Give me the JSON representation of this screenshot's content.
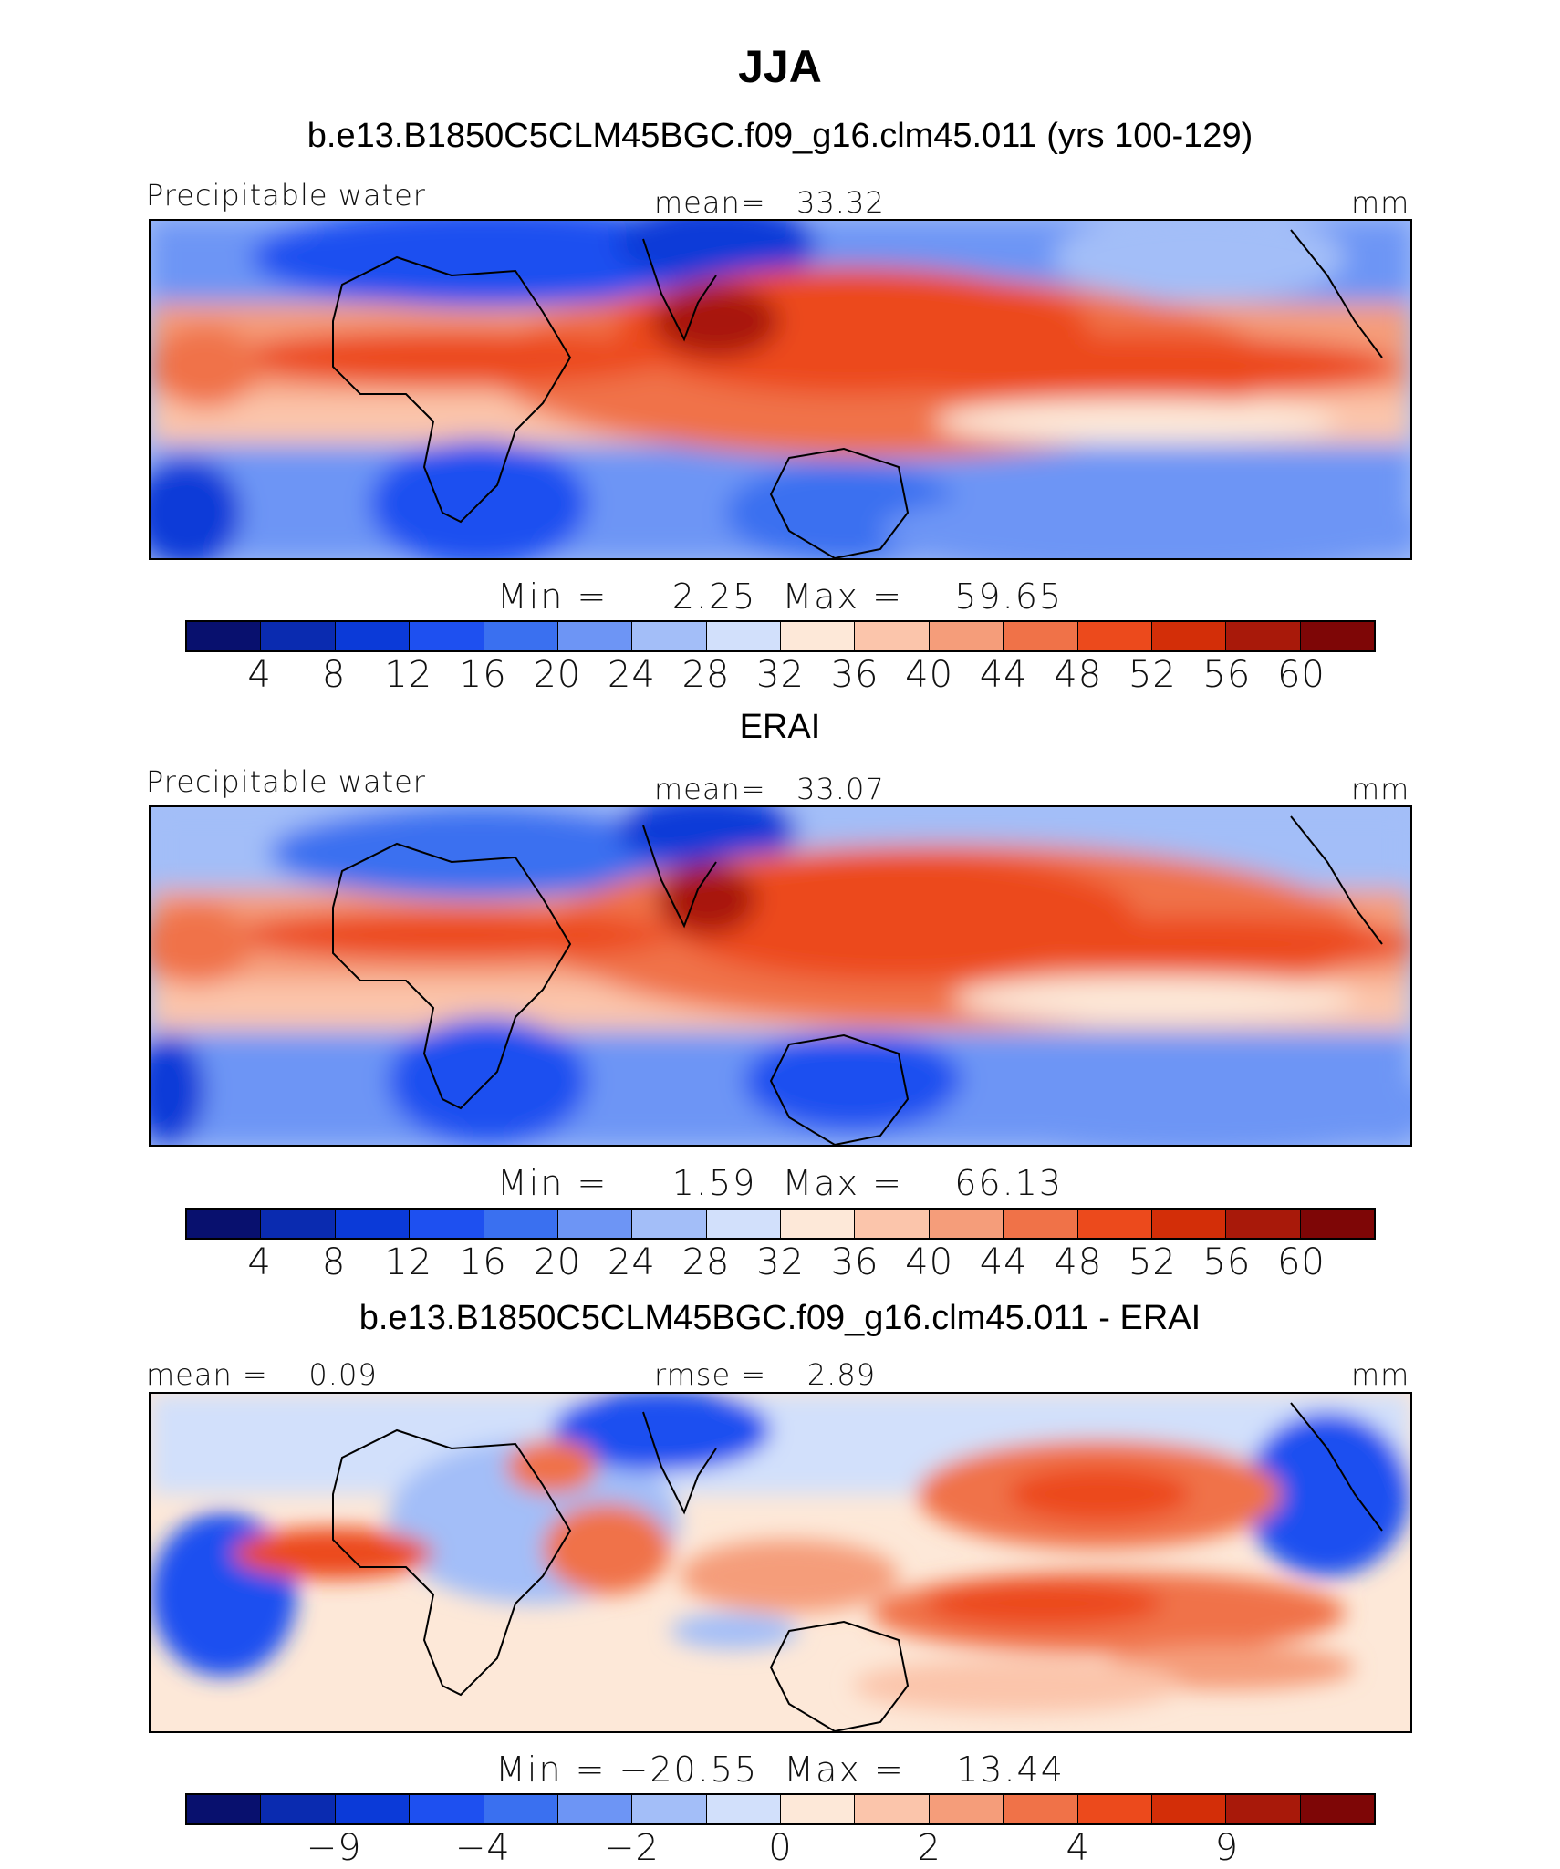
{
  "figure": {
    "title": "JJA"
  },
  "panels": [
    {
      "subtitle": "b.e13.B1850C5CLM45BGC.f09_g16.clm45.011 (yrs 100-129)",
      "left_label": "Precipitable water",
      "center_label": "mean=   33.32",
      "right_label": "mm",
      "stats": "Min =     2.25  Max =    59.65"
    },
    {
      "subtitle": "ERAI",
      "left_label": "Precipitable water",
      "center_label": "mean=   33.07",
      "right_label": "mm",
      "stats": "Min =     1.59  Max =    66.13"
    },
    {
      "subtitle": "b.e13.B1850C5CLM45BGC.f09_g16.clm45.011 - ERAI",
      "left_label": "mean =    0.09",
      "center_label": "rmse =    2.89",
      "right_label": "mm",
      "stats": "Min = −20.55  Max =    13.44"
    }
  ],
  "colorbars": {
    "abs_levels": [
      "4",
      "8",
      "12",
      "16",
      "20",
      "24",
      "28",
      "32",
      "36",
      "40",
      "44",
      "48",
      "52",
      "56",
      "60"
    ],
    "diff_levels": [
      "−9",
      "−4",
      "−2",
      "0",
      "2",
      "4",
      "9"
    ],
    "colors": [
      "#08106e",
      "#0a2bb0",
      "#0b3ad8",
      "#1e50f0",
      "#3a70f0",
      "#6d95f5",
      "#a3bef8",
      "#d2e0fb",
      "#fde8d8",
      "#fbc5ab",
      "#f59d7a",
      "#f07248",
      "#ec4a1c",
      "#d32e08",
      "#a8190a",
      "#7e0606"
    ]
  },
  "chart_data": [
    {
      "type": "heatmap",
      "title": "b.e13.B1850C5CLM45BGC.f09_g16.clm45.011 (yrs 100-129)",
      "variable": "Precipitable water",
      "units": "mm",
      "mean": 33.32,
      "min": 2.25,
      "max": 59.65,
      "levels": [
        4,
        8,
        12,
        16,
        20,
        24,
        28,
        32,
        36,
        40,
        44,
        48,
        52,
        56,
        60
      ]
    },
    {
      "type": "heatmap",
      "title": "ERAI",
      "variable": "Precipitable water",
      "units": "mm",
      "mean": 33.07,
      "min": 1.59,
      "max": 66.13,
      "levels": [
        4,
        8,
        12,
        16,
        20,
        24,
        28,
        32,
        36,
        40,
        44,
        48,
        52,
        56,
        60
      ]
    },
    {
      "type": "heatmap",
      "title": "b.e13.B1850C5CLM45BGC.f09_g16.clm45.011 - ERAI",
      "units": "mm",
      "mean": 0.09,
      "rmse": 2.89,
      "min": -20.55,
      "max": 13.44,
      "levels": [
        -9,
        -4,
        -2,
        0,
        2,
        4,
        9
      ]
    }
  ]
}
